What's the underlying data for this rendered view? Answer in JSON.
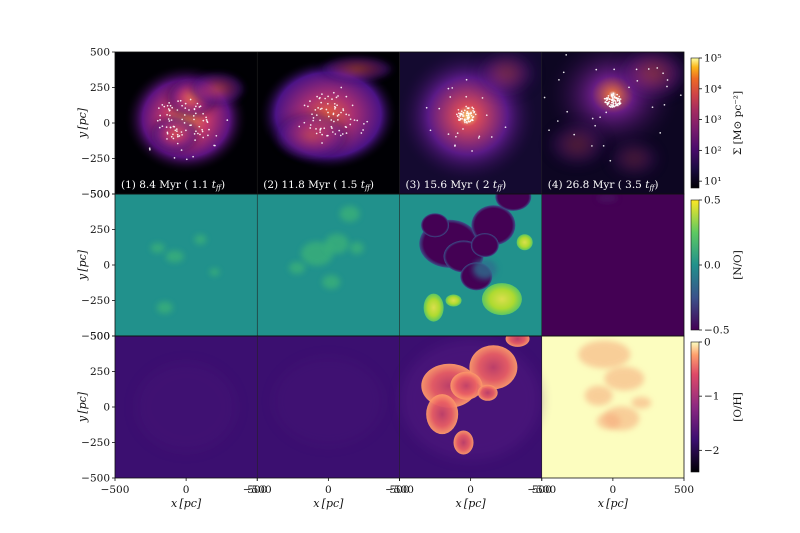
{
  "figure": {
    "background": "#ffffff",
    "y_axis_label": "y [pc]",
    "x_axis_label": "x [pc]"
  },
  "chart_data": {
    "type": "heatmap",
    "layout": "3 rows x 4 columns of spatial maps",
    "xlim": [
      -500,
      500
    ],
    "ylim": [
      -500,
      500
    ],
    "x_ticks": [
      "−500",
      "0",
      "500"
    ],
    "y_ticks": [
      "500",
      "250",
      "0",
      "−250",
      "−500"
    ],
    "xlabel": "x [pc]",
    "ylabel": "y [pc]",
    "snapshots": [
      {
        "index": 1,
        "time_myr": 8.4,
        "t_ff": 1.1,
        "label": "(1) 8.4 Myr ( 1.1 t_ff)"
      },
      {
        "index": 2,
        "time_myr": 11.8,
        "t_ff": 1.5,
        "label": "(2) 11.8 Myr ( 1.5 t_ff)"
      },
      {
        "index": 3,
        "time_myr": 15.6,
        "t_ff": 2.0,
        "label": "(3) 15.6 Myr ( 2.0 t_ff)"
      },
      {
        "index": 4,
        "time_myr": 26.8,
        "t_ff": 3.5,
        "label": "(4) 26.8 Myr ( 3.5 t_ff)"
      }
    ],
    "rows": [
      {
        "quantity": "surface density",
        "colorbar_label": "Σ [M⊙ pc⁻²]",
        "colormap": "inferno",
        "scale": "log",
        "range": [
          6,
          100000
        ],
        "tick_labels": [
          "10⁵",
          "10⁴",
          "10³",
          "10²",
          "10¹"
        ],
        "tick_values": [
          100000,
          10000,
          1000,
          100,
          10
        ]
      },
      {
        "quantity": "[N/O]",
        "colorbar_label": "[N/O]",
        "colormap": "viridis",
        "scale": "linear",
        "range": [
          -0.5,
          0.5
        ],
        "tick_labels": [
          "0.5",
          "0.0",
          "−0.5"
        ],
        "tick_values": [
          0.5,
          0.0,
          -0.5
        ]
      },
      {
        "quantity": "[O/H]",
        "colorbar_label": "[O/H]",
        "colormap": "magma",
        "scale": "linear",
        "range": [
          -2.4,
          0
        ],
        "tick_labels": [
          "0",
          "−1",
          "−2"
        ],
        "tick_values": [
          0,
          -1,
          -2
        ]
      }
    ],
    "colors": {
      "inferno_dark": "#000004",
      "nitrogen_base": "#21918c",
      "nitrogen_low": "#440154",
      "oxygen_base": "#3b0f70",
      "oxygen_high": "#fcfdbf",
      "star_points": "#ffffff"
    }
  }
}
